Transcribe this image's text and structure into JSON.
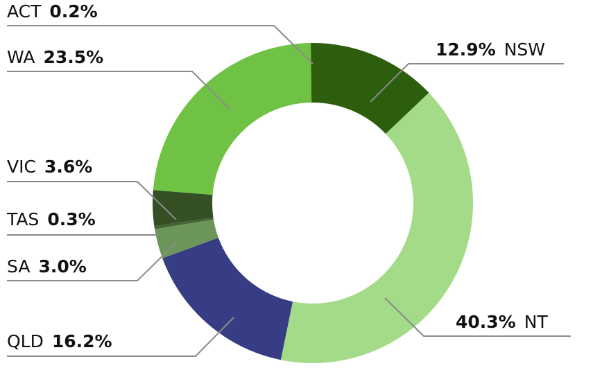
{
  "chart_data": {
    "type": "pie",
    "subtype": "donut",
    "title": "",
    "categories": [
      "NSW",
      "NT",
      "QLD",
      "SA",
      "TAS",
      "VIC",
      "WA",
      "ACT"
    ],
    "values": [
      12.9,
      40.3,
      16.2,
      3.0,
      0.3,
      3.6,
      23.5,
      0.2
    ],
    "unit": "%",
    "colors": [
      "#2c5e0e",
      "#a4db88",
      "#363d85",
      "#6c955a",
      "#456336",
      "#344f23",
      "#70c244",
      "#2c5e0e"
    ],
    "start_angle_deg": 0,
    "direction": "clockwise",
    "legend": "none (leader-line data labels)"
  },
  "labels": [
    {
      "name": "ACT",
      "pct": "0.2%",
      "side": "left"
    },
    {
      "name": "WA",
      "pct": "23.5%",
      "side": "left"
    },
    {
      "name": "VIC",
      "pct": "3.6%",
      "side": "left"
    },
    {
      "name": "TAS",
      "pct": "0.3%",
      "side": "left"
    },
    {
      "name": "SA",
      "pct": "3.0%",
      "side": "left"
    },
    {
      "name": "QLD",
      "pct": "16.2%",
      "side": "left"
    },
    {
      "name": "NSW",
      "pct": "12.9%",
      "side": "right"
    },
    {
      "name": "NT",
      "pct": "40.3%",
      "side": "right"
    }
  ],
  "style": {
    "leader_color": "#8a8a8a"
  }
}
